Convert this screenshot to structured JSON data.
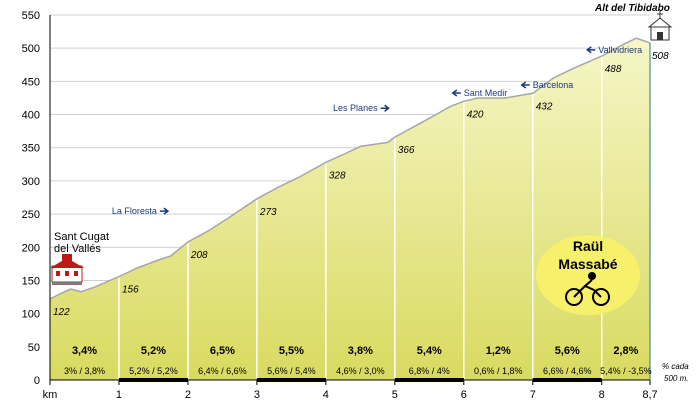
{
  "chart_data": {
    "type": "area",
    "x_unit": "km",
    "y_ticks": [
      0,
      50,
      100,
      150,
      200,
      250,
      300,
      350,
      400,
      450,
      500,
      550
    ],
    "x_ticks": [
      "km",
      "1",
      "2",
      "3",
      "4",
      "5",
      "6",
      "7",
      "8",
      "8,7"
    ],
    "ylim": [
      0,
      550
    ],
    "xlim": [
      0,
      8.7
    ],
    "profile": [
      {
        "x": 0.0,
        "y": 122
      },
      {
        "x": 0.15,
        "y": 130
      },
      {
        "x": 0.3,
        "y": 137
      },
      {
        "x": 0.45,
        "y": 133
      },
      {
        "x": 0.65,
        "y": 140
      },
      {
        "x": 1.0,
        "y": 156
      },
      {
        "x": 1.25,
        "y": 168
      },
      {
        "x": 1.55,
        "y": 180
      },
      {
        "x": 1.75,
        "y": 187
      },
      {
        "x": 2.0,
        "y": 208
      },
      {
        "x": 2.3,
        "y": 225
      },
      {
        "x": 2.6,
        "y": 245
      },
      {
        "x": 3.0,
        "y": 273
      },
      {
        "x": 3.3,
        "y": 290
      },
      {
        "x": 3.6,
        "y": 305
      },
      {
        "x": 4.0,
        "y": 328
      },
      {
        "x": 4.3,
        "y": 342
      },
      {
        "x": 4.5,
        "y": 352
      },
      {
        "x": 4.7,
        "y": 355
      },
      {
        "x": 4.9,
        "y": 358
      },
      {
        "x": 5.0,
        "y": 366
      },
      {
        "x": 5.3,
        "y": 383
      },
      {
        "x": 5.6,
        "y": 400
      },
      {
        "x": 5.8,
        "y": 412
      },
      {
        "x": 6.0,
        "y": 420
      },
      {
        "x": 6.2,
        "y": 425
      },
      {
        "x": 6.6,
        "y": 425
      },
      {
        "x": 7.0,
        "y": 432
      },
      {
        "x": 7.3,
        "y": 455
      },
      {
        "x": 7.6,
        "y": 470
      },
      {
        "x": 8.0,
        "y": 488
      },
      {
        "x": 8.3,
        "y": 505
      },
      {
        "x": 8.5,
        "y": 515
      },
      {
        "x": 8.7,
        "y": 508
      }
    ],
    "elevation_labels": [
      {
        "x": 0,
        "label": "122"
      },
      {
        "x": 1,
        "label": "156"
      },
      {
        "x": 2,
        "label": "208"
      },
      {
        "x": 3,
        "label": "273"
      },
      {
        "x": 4,
        "label": "328"
      },
      {
        "x": 5,
        "label": "366"
      },
      {
        "x": 6,
        "label": "420"
      },
      {
        "x": 7,
        "label": "432"
      },
      {
        "x": 8,
        "label": "488"
      },
      {
        "x": 8.7,
        "label": "508"
      }
    ],
    "segment_grades": [
      "3,4%",
      "5,2%",
      "6,5%",
      "5,5%",
      "3,8%",
      "5,4%",
      "1,2%",
      "5,6%",
      "2,8%"
    ],
    "segment_subgrades": [
      "3% / 3,8%",
      "5,2% / 5,2%",
      "6,4% / 6,6%",
      "5,6% / 5,4%",
      "4,6% / 3,0%",
      "6,8% / 4%",
      "0,6% / 1,8%",
      "6,6% / 4,6%",
      "5,4% / -3,5%"
    ],
    "places": [
      {
        "x": 1.55,
        "y": 250,
        "label": "La Floresta",
        "arrow": "right"
      },
      {
        "x": 4.75,
        "y": 405,
        "label": "Les Planes",
        "arrow": "right"
      },
      {
        "x": 6.0,
        "y": 428,
        "label": "Sant Medir",
        "arrow": "left"
      },
      {
        "x": 7.0,
        "y": 440,
        "label": "Barcelona",
        "arrow": "left"
      },
      {
        "x": 7.95,
        "y": 493,
        "label": "Vallvidriera",
        "arrow": "left"
      }
    ],
    "start_label": [
      "Sant Cugat",
      "del Vallés"
    ],
    "summit_label": "Alt del Tibidabo",
    "right_note": [
      "% cada",
      "500 m."
    ],
    "rider_label": [
      "Raül",
      "Massabé"
    ],
    "colors": {
      "fill_top": "#f6f6c8",
      "fill_bottom": "#d9da60",
      "profile_line": "#a6a6a6",
      "bar": "#000000",
      "place_text": "#1a3a7a",
      "badge": "#f7f06a"
    }
  }
}
